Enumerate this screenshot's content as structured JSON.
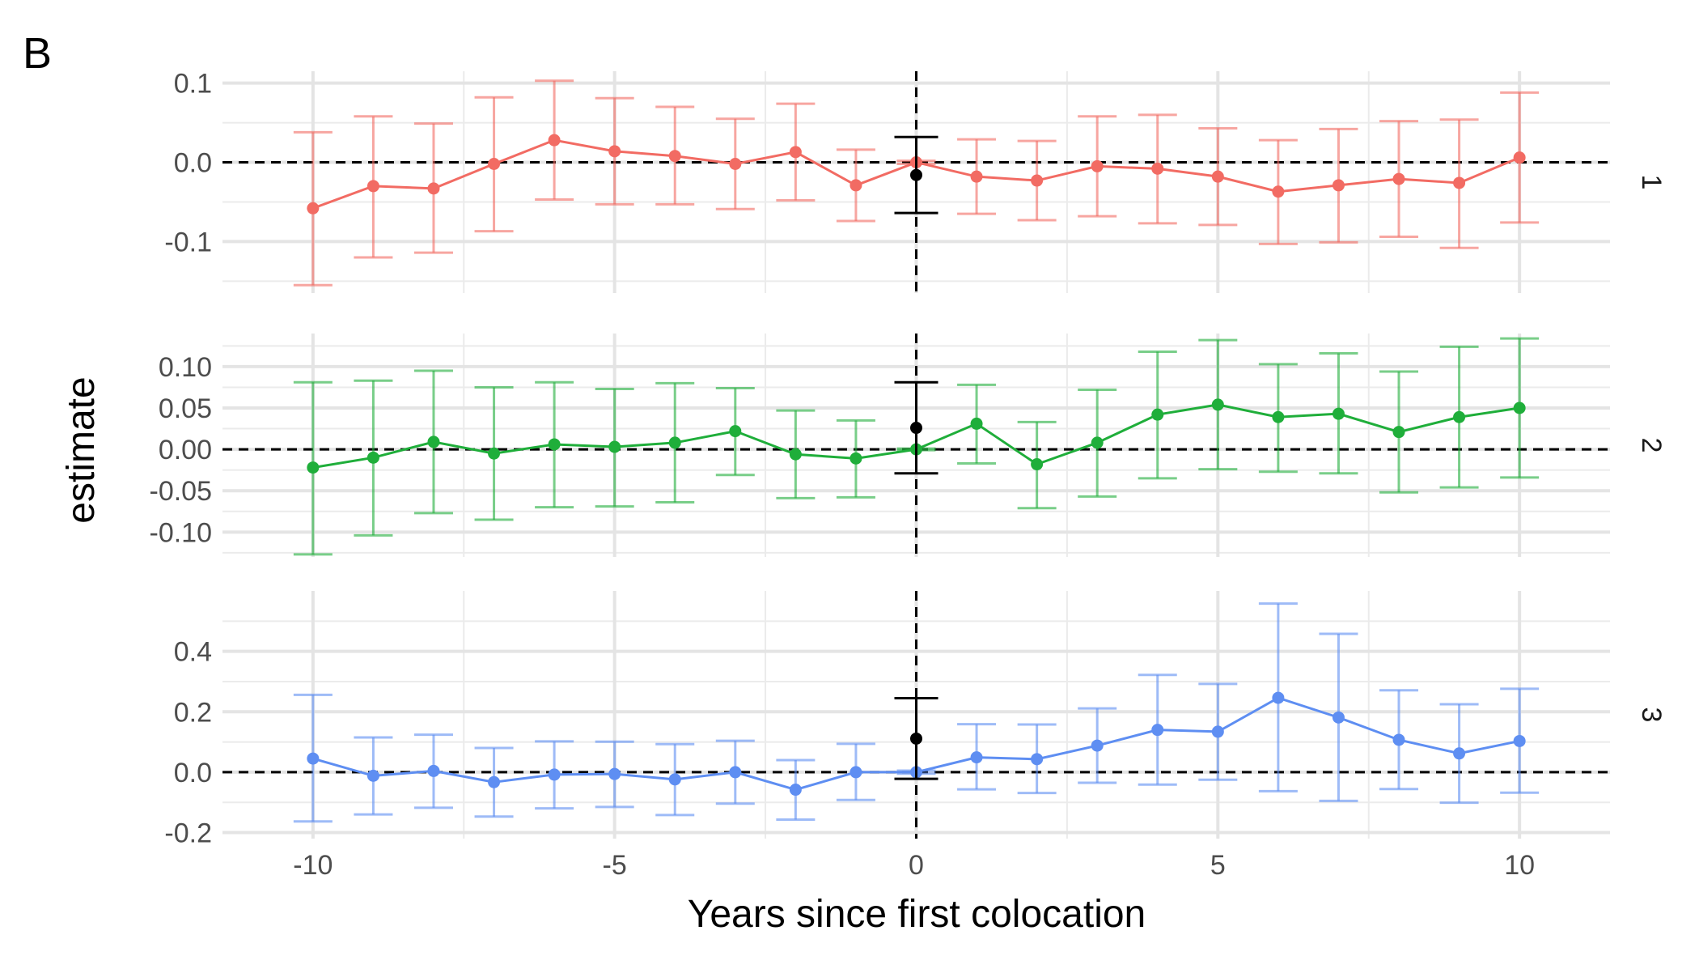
{
  "figure": {
    "panel_letter": "B"
  },
  "chart_data": {
    "type": "line",
    "subtype": "event-study point estimates with error bars, faceted",
    "title": "",
    "panel_letter": "B",
    "xlabel": "Years since first colocation",
    "ylabel": "estimate",
    "xlim": [
      -11.5,
      11.5
    ],
    "x_ticks": [
      -10,
      -5,
      0,
      5,
      10
    ],
    "x_tick_labels": [
      "-10",
      "-5",
      "0",
      "5",
      "10"
    ],
    "reference_lines": {
      "x": 0,
      "y": 0,
      "style": "dashed"
    },
    "grid": true,
    "legend": "none",
    "colors": {
      "1": "#F26B63",
      "2": "#1FAE3A",
      "3": "#5E8EF2",
      "pooled": "#000000"
    },
    "facets": [
      {
        "label": "1",
        "ylim": [
          -0.165,
          0.115
        ],
        "y_ticks": [
          -0.1,
          0.0,
          0.1
        ],
        "y_tick_labels": [
          "-0.1",
          "0.0",
          "0.1"
        ],
        "series": {
          "x": [
            -10,
            -9,
            -8,
            -7,
            -6,
            -5,
            -4,
            -3,
            -2,
            -1,
            0,
            1,
            2,
            3,
            4,
            5,
            6,
            7,
            8,
            9,
            10
          ],
          "estimate": [
            -0.058,
            -0.03,
            -0.033,
            -0.002,
            0.028,
            0.014,
            0.008,
            -0.002,
            0.013,
            -0.029,
            0.0,
            -0.018,
            -0.023,
            -0.005,
            -0.008,
            -0.018,
            -0.037,
            -0.029,
            -0.021,
            -0.026,
            0.006
          ],
          "lower": [
            -0.155,
            -0.12,
            -0.114,
            -0.087,
            -0.047,
            -0.053,
            -0.053,
            -0.059,
            -0.048,
            -0.074,
            -0.002,
            -0.065,
            -0.073,
            -0.068,
            -0.077,
            -0.079,
            -0.103,
            -0.101,
            -0.094,
            -0.108,
            -0.076
          ],
          "upper": [
            0.038,
            0.058,
            0.049,
            0.082,
            0.103,
            0.081,
            0.07,
            0.055,
            0.074,
            0.016,
            0.002,
            0.029,
            0.027,
            0.058,
            0.06,
            0.043,
            0.028,
            0.042,
            0.052,
            0.054,
            0.088
          ]
        },
        "pooled": {
          "x": 0,
          "estimate": -0.016,
          "lower": -0.064,
          "upper": 0.032
        }
      },
      {
        "label": "2",
        "ylim": [
          -0.13,
          0.14
        ],
        "y_ticks": [
          -0.1,
          -0.05,
          0.0,
          0.05,
          0.1
        ],
        "y_tick_labels": [
          "-0.10",
          "-0.05",
          "0.00",
          "0.05",
          "0.10"
        ],
        "series": {
          "x": [
            -10,
            -9,
            -8,
            -7,
            -6,
            -5,
            -4,
            -3,
            -2,
            -1,
            0,
            1,
            2,
            3,
            4,
            5,
            6,
            7,
            8,
            9,
            10
          ],
          "estimate": [
            -0.022,
            -0.01,
            0.009,
            -0.005,
            0.006,
            0.003,
            0.008,
            0.022,
            -0.006,
            -0.011,
            0.0,
            0.031,
            -0.018,
            0.008,
            0.042,
            0.054,
            0.039,
            0.043,
            0.021,
            0.039,
            0.05
          ],
          "lower": [
            -0.127,
            -0.104,
            -0.077,
            -0.085,
            -0.07,
            -0.069,
            -0.064,
            -0.031,
            -0.059,
            -0.058,
            -0.001,
            -0.017,
            -0.071,
            -0.057,
            -0.035,
            -0.024,
            -0.027,
            -0.029,
            -0.052,
            -0.046,
            -0.034
          ],
          "upper": [
            0.081,
            0.083,
            0.095,
            0.075,
            0.081,
            0.073,
            0.08,
            0.074,
            0.047,
            0.035,
            0.001,
            0.078,
            0.033,
            0.072,
            0.118,
            0.132,
            0.103,
            0.116,
            0.094,
            0.124,
            0.134
          ]
        },
        "pooled": {
          "x": 0,
          "estimate": 0.026,
          "lower": -0.029,
          "upper": 0.081
        }
      },
      {
        "label": "3",
        "ylim": [
          -0.22,
          0.6
        ],
        "y_ticks": [
          -0.2,
          0.0,
          0.2,
          0.4
        ],
        "y_tick_labels": [
          "-0.2",
          "0.0",
          "0.2",
          "0.4"
        ],
        "series": {
          "x": [
            -10,
            -9,
            -8,
            -7,
            -6,
            -5,
            -4,
            -3,
            -2,
            -1,
            0,
            1,
            2,
            3,
            4,
            5,
            6,
            7,
            8,
            9,
            10
          ],
          "estimate": [
            0.045,
            -0.012,
            0.004,
            -0.033,
            -0.008,
            -0.006,
            -0.024,
            0.0,
            -0.058,
            0.0,
            0.0,
            0.049,
            0.043,
            0.088,
            0.14,
            0.134,
            0.246,
            0.181,
            0.107,
            0.062,
            0.103
          ],
          "lower": [
            -0.163,
            -0.14,
            -0.118,
            -0.147,
            -0.12,
            -0.115,
            -0.142,
            -0.104,
            -0.157,
            -0.092,
            -0.005,
            -0.057,
            -0.069,
            -0.035,
            -0.041,
            -0.025,
            -0.063,
            -0.095,
            -0.056,
            -0.101,
            -0.068
          ],
          "upper": [
            0.256,
            0.115,
            0.124,
            0.08,
            0.102,
            0.101,
            0.093,
            0.104,
            0.04,
            0.094,
            0.005,
            0.159,
            0.158,
            0.211,
            0.322,
            0.292,
            0.558,
            0.458,
            0.271,
            0.225,
            0.276
          ]
        },
        "pooled": {
          "x": 0,
          "estimate": 0.111,
          "lower": -0.022,
          "upper": 0.245
        }
      }
    ]
  }
}
